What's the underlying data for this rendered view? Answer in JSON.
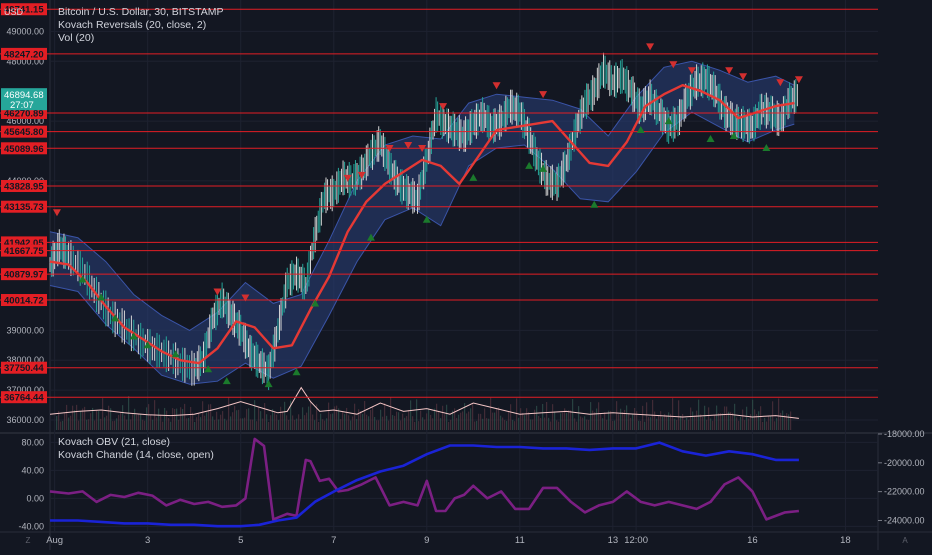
{
  "header": {
    "symbol_line": "Bitcoin / U.S. Dollar, 30, BITSTAMP",
    "indicator_1": "Kovach Reversals (20, close, 2)",
    "indicator_2": "Vol (20)",
    "currency": "USD"
  },
  "lower_pane": {
    "indicator_1": "Kovach OBV (21, close)",
    "indicator_2": "Kovach Chande (14, close, open)"
  },
  "price_badge": {
    "price": "46894.68",
    "countdown": "27:07",
    "color": "#26a69a"
  },
  "colors": {
    "background": "#131722",
    "resistance_line": "#e31e24",
    "ma_line": "#e53935",
    "band_fill": "#2a3f7a",
    "up_arrow": "#1b7a2c",
    "down_arrow": "#d32f2f",
    "obv_line": "#1a23d6",
    "chande_line": "#7b1f83",
    "volume_ma": "#f5c6c6"
  },
  "chart_data": {
    "type": "line",
    "title": "Bitcoin / U.S. Dollar, 30, BITSTAMP",
    "xlabel": "",
    "ylabel": "USD",
    "x_ticks": [
      {
        "label": "Aug",
        "x": 0
      },
      {
        "label": "3",
        "x": 2
      },
      {
        "label": "5",
        "x": 4
      },
      {
        "label": "7",
        "x": 6
      },
      {
        "label": "9",
        "x": 8
      },
      {
        "label": "11",
        "x": 10
      },
      {
        "label": "13",
        "x": 12
      },
      {
        "label": "12:00",
        "x": 12.5
      },
      {
        "label": "16",
        "x": 15
      },
      {
        "label": "18",
        "x": 17
      }
    ],
    "xlim": [
      -0.1,
      17.7
    ],
    "ylim": [
      35600,
      50050
    ],
    "y_ticks": [
      {
        "label": "49000.00",
        "value": 49000
      },
      {
        "label": "48000.00",
        "value": 48000
      },
      {
        "label": "46000.00",
        "value": 46000
      },
      {
        "label": "44000.00",
        "value": 44000
      },
      {
        "label": "39000.00",
        "value": 39000
      },
      {
        "label": "38000.00",
        "value": 38000
      },
      {
        "label": "37000.00",
        "value": 37000
      },
      {
        "label": "36000.00",
        "value": 36000
      }
    ],
    "price_levels": [
      {
        "label": "49741.15",
        "value": 49741.15
      },
      {
        "label": "48247.20",
        "value": 48247.2
      },
      {
        "label": "46270.89",
        "value": 46270.89
      },
      {
        "label": "45645.80",
        "value": 45645.8
      },
      {
        "label": "45089.96",
        "value": 45089.96
      },
      {
        "label": "43828.95",
        "value": 43828.95
      },
      {
        "label": "43135.73",
        "value": 43135.73
      },
      {
        "label": "41942.05",
        "value": 41942.05
      },
      {
        "label": "41667.75",
        "value": 41667.75
      },
      {
        "label": "40879.97",
        "value": 40879.97
      },
      {
        "label": "40014.72",
        "value": 40014.72
      },
      {
        "label": "37750.44",
        "value": 37750.44
      },
      {
        "label": "36764.44",
        "value": 36764.44
      }
    ],
    "series": [
      {
        "kind": "price",
        "x": [
          -0.1,
          0.1,
          0.3,
          0.6,
          0.9,
          1.2,
          1.5,
          1.8,
          2.1,
          2.4,
          2.7,
          3.0,
          3.2,
          3.4,
          3.6,
          3.8,
          4.0,
          4.2,
          4.4,
          4.6,
          4.8,
          5.0,
          5.2,
          5.4,
          5.6,
          5.8,
          6.0,
          6.2,
          6.4,
          6.6,
          6.8,
          7.0,
          7.2,
          7.4,
          7.6,
          7.8,
          8.0,
          8.2,
          8.4,
          8.6,
          8.8,
          9.0,
          9.2,
          9.4,
          9.6,
          9.8,
          10.0,
          10.2,
          10.4,
          10.6,
          10.8,
          11.0,
          11.2,
          11.4,
          11.6,
          11.8,
          12.0,
          12.2,
          12.4,
          12.6,
          12.8,
          13.0,
          13.2,
          13.4,
          13.6,
          13.8,
          14.0,
          14.2,
          14.4,
          14.6,
          14.8,
          15.0,
          15.2,
          15.4,
          15.6,
          15.8,
          16.0
        ],
        "y": [
          41200,
          41800,
          41500,
          41000,
          40200,
          39500,
          39100,
          38700,
          38400,
          38200,
          37900,
          37700,
          38100,
          39400,
          40000,
          39500,
          39000,
          38300,
          37900,
          37600,
          39000,
          40600,
          40900,
          40500,
          42200,
          43500,
          43600,
          44100,
          44000,
          44300,
          44900,
          45300,
          44500,
          43900,
          43600,
          43400,
          44700,
          46200,
          45900,
          45700,
          45500,
          45900,
          46200,
          45800,
          46000,
          46500,
          46300,
          45500,
          44600,
          44000,
          43900,
          44600,
          45700,
          46600,
          47000,
          47700,
          47300,
          47500,
          47000,
          46400,
          46800,
          46300,
          45800,
          46000,
          46800,
          47300,
          47400,
          47000,
          46300,
          46000,
          45900,
          45800,
          46400,
          46300,
          46000,
          46700,
          46900
        ]
      },
      {
        "kind": "moving_average",
        "name": "Kovach Reversals",
        "x": [
          -0.1,
          0.3,
          0.7,
          1.1,
          1.5,
          1.9,
          2.3,
          2.7,
          3.1,
          3.5,
          3.9,
          4.3,
          4.7,
          5.1,
          5.5,
          5.9,
          6.3,
          6.7,
          7.1,
          7.5,
          7.9,
          8.3,
          8.7,
          9.1,
          9.5,
          9.9,
          10.3,
          10.7,
          11.1,
          11.5,
          11.9,
          12.3,
          12.7,
          13.1,
          13.5,
          13.9,
          14.3,
          14.7,
          15.1,
          15.5,
          15.9
        ],
        "y": [
          41300,
          41200,
          40600,
          39800,
          39100,
          38700,
          38300,
          38000,
          37900,
          38400,
          39300,
          39100,
          38400,
          38500,
          39700,
          40800,
          42300,
          43300,
          43900,
          44300,
          44700,
          44500,
          43900,
          44800,
          45700,
          45800,
          45900,
          46000,
          45300,
          44600,
          44500,
          45300,
          46500,
          46900,
          47200,
          47000,
          46700,
          46100,
          46300,
          46500,
          46600
        ]
      },
      {
        "kind": "band_upper",
        "x": [
          -0.1,
          0.5,
          1.1,
          1.7,
          2.3,
          2.9,
          3.5,
          4.1,
          4.7,
          5.3,
          5.9,
          6.5,
          7.1,
          7.7,
          8.3,
          8.9,
          9.5,
          10.1,
          10.7,
          11.3,
          11.9,
          12.5,
          13.1,
          13.7,
          14.3,
          14.9,
          15.5,
          15.9
        ],
        "y": [
          42300,
          42100,
          41300,
          40200,
          39500,
          39000,
          39600,
          40600,
          39900,
          40200,
          42000,
          44000,
          45200,
          45500,
          45400,
          46600,
          46900,
          46800,
          46700,
          46400,
          45500,
          46800,
          47800,
          48000,
          47700,
          47300,
          47500,
          47200
        ]
      },
      {
        "kind": "band_lower",
        "x": [
          -0.1,
          0.5,
          1.1,
          1.7,
          2.3,
          2.9,
          3.5,
          4.1,
          4.7,
          5.3,
          5.9,
          6.5,
          7.1,
          7.7,
          8.3,
          8.9,
          9.5,
          10.1,
          10.7,
          11.3,
          11.9,
          12.5,
          13.1,
          13.7,
          14.3,
          14.9,
          15.5,
          15.9
        ],
        "y": [
          40500,
          40300,
          39200,
          38400,
          37500,
          37200,
          37300,
          37900,
          37400,
          37800,
          39500,
          41300,
          42700,
          43100,
          42500,
          44500,
          45100,
          45200,
          44400,
          43400,
          43300,
          44300,
          45600,
          46300,
          45800,
          45300,
          45700,
          45900
        ]
      }
    ],
    "down_arrows": [
      {
        "x": 0.05,
        "y": 42950
      },
      {
        "x": 3.5,
        "y": 40300
      },
      {
        "x": 4.1,
        "y": 40100
      },
      {
        "x": 6.3,
        "y": 44100
      },
      {
        "x": 6.6,
        "y": 44200
      },
      {
        "x": 7.2,
        "y": 45100
      },
      {
        "x": 7.6,
        "y": 45200
      },
      {
        "x": 7.9,
        "y": 45100
      },
      {
        "x": 8.35,
        "y": 46500
      },
      {
        "x": 9.5,
        "y": 47200
      },
      {
        "x": 10.5,
        "y": 46900
      },
      {
        "x": 12.8,
        "y": 48500
      },
      {
        "x": 13.3,
        "y": 47900
      },
      {
        "x": 13.7,
        "y": 47700
      },
      {
        "x": 14.5,
        "y": 47700
      },
      {
        "x": 14.8,
        "y": 47500
      },
      {
        "x": 15.6,
        "y": 47300
      },
      {
        "x": 16.0,
        "y": 47400
      }
    ],
    "up_arrows": [
      {
        "x": 0.6,
        "y": 40700
      },
      {
        "x": 1.0,
        "y": 40100
      },
      {
        "x": 1.3,
        "y": 39400
      },
      {
        "x": 1.7,
        "y": 38800
      },
      {
        "x": 2.0,
        "y": 38500
      },
      {
        "x": 2.6,
        "y": 38200
      },
      {
        "x": 3.3,
        "y": 37700
      },
      {
        "x": 3.7,
        "y": 37300
      },
      {
        "x": 4.6,
        "y": 37200
      },
      {
        "x": 5.2,
        "y": 37600
      },
      {
        "x": 5.6,
        "y": 39900
      },
      {
        "x": 6.8,
        "y": 42100
      },
      {
        "x": 8.0,
        "y": 42700
      },
      {
        "x": 9.0,
        "y": 44100
      },
      {
        "x": 10.2,
        "y": 44500
      },
      {
        "x": 10.5,
        "y": 44400
      },
      {
        "x": 11.6,
        "y": 43200
      },
      {
        "x": 12.6,
        "y": 45700
      },
      {
        "x": 13.2,
        "y": 46000
      },
      {
        "x": 14.1,
        "y": 45400
      },
      {
        "x": 14.6,
        "y": 45500
      },
      {
        "x": 15.3,
        "y": 45100
      }
    ],
    "volume_ma": {
      "x": [
        -0.1,
        0.5,
        1.0,
        1.5,
        2.0,
        2.5,
        3.0,
        3.5,
        4.0,
        4.5,
        4.8,
        5.0,
        5.3,
        5.5,
        5.7,
        6.0,
        6.5,
        7.0,
        7.5,
        8.0,
        8.5,
        9.0,
        9.5,
        10.0,
        10.5,
        11.0,
        11.5,
        12.0,
        12.5,
        13.0,
        13.5,
        14.0,
        14.5,
        15.0,
        15.5,
        16.0
      ],
      "y": [
        0.35,
        0.45,
        0.5,
        0.4,
        0.33,
        0.3,
        0.35,
        0.55,
        0.8,
        0.55,
        0.4,
        0.45,
        1.3,
        0.8,
        0.45,
        0.5,
        0.35,
        0.75,
        0.45,
        0.55,
        0.35,
        0.75,
        0.55,
        0.35,
        0.4,
        0.45,
        0.35,
        0.4,
        0.35,
        0.3,
        0.25,
        0.3,
        0.35,
        0.25,
        0.3,
        0.2
      ]
    },
    "obv": {
      "name": "Kovach OBV (21, close)",
      "ylim": [
        -24800,
        -18000
      ],
      "y_ticks": [
        {
          "label": "-18000.00",
          "value": -18000
        },
        {
          "label": "-20000.00",
          "value": -20000
        },
        {
          "label": "-22000.00",
          "value": -22000
        },
        {
          "label": "-24000.00",
          "value": -24000
        }
      ],
      "x": [
        -0.1,
        0.5,
        1.0,
        1.5,
        2.0,
        2.5,
        3.0,
        3.5,
        4.0,
        4.4,
        4.8,
        5.2,
        5.6,
        6.0,
        6.5,
        7.0,
        7.5,
        8.0,
        8.5,
        9.0,
        9.5,
        10.0,
        10.5,
        11.0,
        11.5,
        12.0,
        12.5,
        13.0,
        13.5,
        14.0,
        14.5,
        15.0,
        15.5,
        16.0
      ],
      "y": [
        -24000,
        -24000,
        -24100,
        -24200,
        -24200,
        -24300,
        -24300,
        -24400,
        -24400,
        -24300,
        -24000,
        -23800,
        -22700,
        -22000,
        -21200,
        -20600,
        -20200,
        -19400,
        -18800,
        -18800,
        -18900,
        -18900,
        -19000,
        -19000,
        -19100,
        -19000,
        -19000,
        -18600,
        -19200,
        -19500,
        -19200,
        -19400,
        -19800,
        -19800
      ]
    },
    "chande": {
      "name": "Kovach Chande (14, close, open)",
      "ylim": [
        -48,
        92
      ],
      "y_ticks": [
        {
          "label": "80.00",
          "value": 80
        },
        {
          "label": "40.00",
          "value": 40
        },
        {
          "label": "0.00",
          "value": 0
        },
        {
          "label": "-40.00",
          "value": -40
        }
      ],
      "x": [
        -0.1,
        0.3,
        0.6,
        0.9,
        1.2,
        1.5,
        1.8,
        2.1,
        2.4,
        2.7,
        3.0,
        3.3,
        3.6,
        3.9,
        4.1,
        4.3,
        4.5,
        4.7,
        5.0,
        5.2,
        5.4,
        5.5,
        5.7,
        5.9,
        6.1,
        6.3,
        6.6,
        6.9,
        7.2,
        7.5,
        7.8,
        8.0,
        8.2,
        8.4,
        8.6,
        8.8,
        9.0,
        9.3,
        9.6,
        9.9,
        10.2,
        10.5,
        10.8,
        11.1,
        11.4,
        11.7,
        12.0,
        12.3,
        12.6,
        12.9,
        13.2,
        13.5,
        13.8,
        14.1,
        14.4,
        14.7,
        15.0,
        15.3,
        15.5,
        15.7,
        16.0
      ],
      "y": [
        10,
        7,
        10,
        -5,
        5,
        2,
        8,
        4,
        -10,
        -2,
        -8,
        -5,
        -12,
        -10,
        0,
        85,
        75,
        -30,
        -22,
        -25,
        55,
        53,
        25,
        28,
        10,
        12,
        20,
        30,
        -10,
        -5,
        -10,
        25,
        -18,
        -18,
        0,
        5,
        18,
        0,
        10,
        -15,
        -15,
        15,
        15,
        -5,
        -20,
        -10,
        -5,
        10,
        -5,
        -10,
        -5,
        -10,
        -15,
        -5,
        20,
        30,
        10,
        -30,
        -25,
        -20,
        -18
      ]
    }
  }
}
